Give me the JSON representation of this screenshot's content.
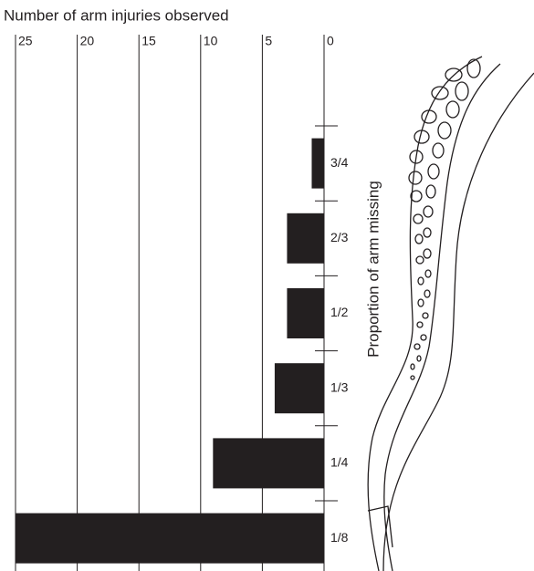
{
  "chart_data": {
    "type": "bar",
    "orientation": "horizontal",
    "title": "Number of arm injuries observed",
    "y_label": "Proportion of arm missing",
    "categories": [
      "3/4",
      "2/3",
      "1/2",
      "1/3",
      "1/4",
      "1/8"
    ],
    "values": [
      1,
      3,
      3,
      4,
      9,
      25
    ],
    "color": "#231f20",
    "xlim": [
      25,
      0
    ],
    "xticks": [
      25,
      20,
      15,
      10,
      5,
      0
    ],
    "grid": true
  }
}
